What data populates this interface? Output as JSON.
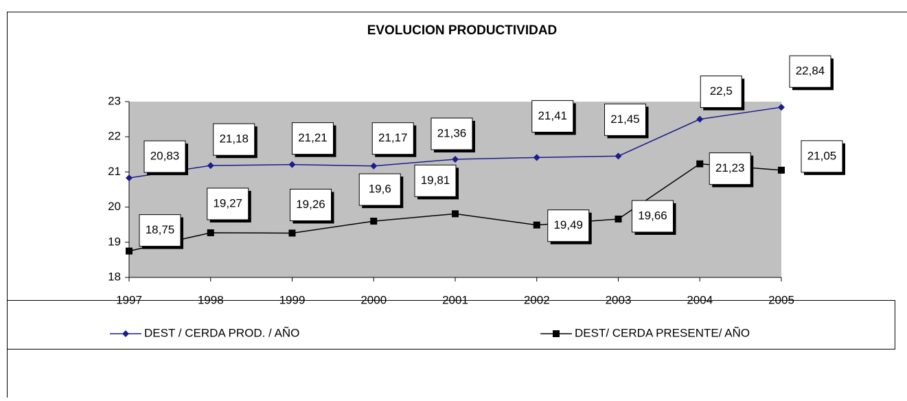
{
  "chart_data": {
    "type": "line",
    "title": "EVOLUCION PRODUCTIVIDAD",
    "categories": [
      "1997",
      "1998",
      "1999",
      "2000",
      "2001",
      "2002",
      "2003",
      "2004",
      "2005"
    ],
    "series": [
      {
        "name": "DEST / CERDA PROD. / AÑO",
        "color": "#1c1c8c",
        "marker": "diamond",
        "values": [
          20.83,
          21.18,
          21.21,
          21.17,
          21.36,
          21.41,
          21.45,
          22.5,
          22.84
        ],
        "value_labels": [
          "20,83",
          "21,18",
          "21,21",
          "21,17",
          "21,36",
          "21,41",
          "21,45",
          "22,5",
          "22,84"
        ]
      },
      {
        "name": "DEST/ CERDA PRESENTE/ AÑO",
        "color": "#000000",
        "marker": "square",
        "values": [
          18.75,
          19.27,
          19.26,
          19.6,
          19.81,
          19.49,
          19.66,
          21.23,
          21.05
        ],
        "value_labels": [
          "18,75",
          "19,27",
          "19,26",
          "19,6",
          "19,81",
          "19,49",
          "19,66",
          "21,23",
          "21,05"
        ]
      }
    ],
    "ylim": [
      18,
      23
    ],
    "yticks": [
      18,
      19,
      20,
      21,
      22,
      23
    ],
    "plot_background": "#c0c0c0",
    "legend": "bottom"
  }
}
